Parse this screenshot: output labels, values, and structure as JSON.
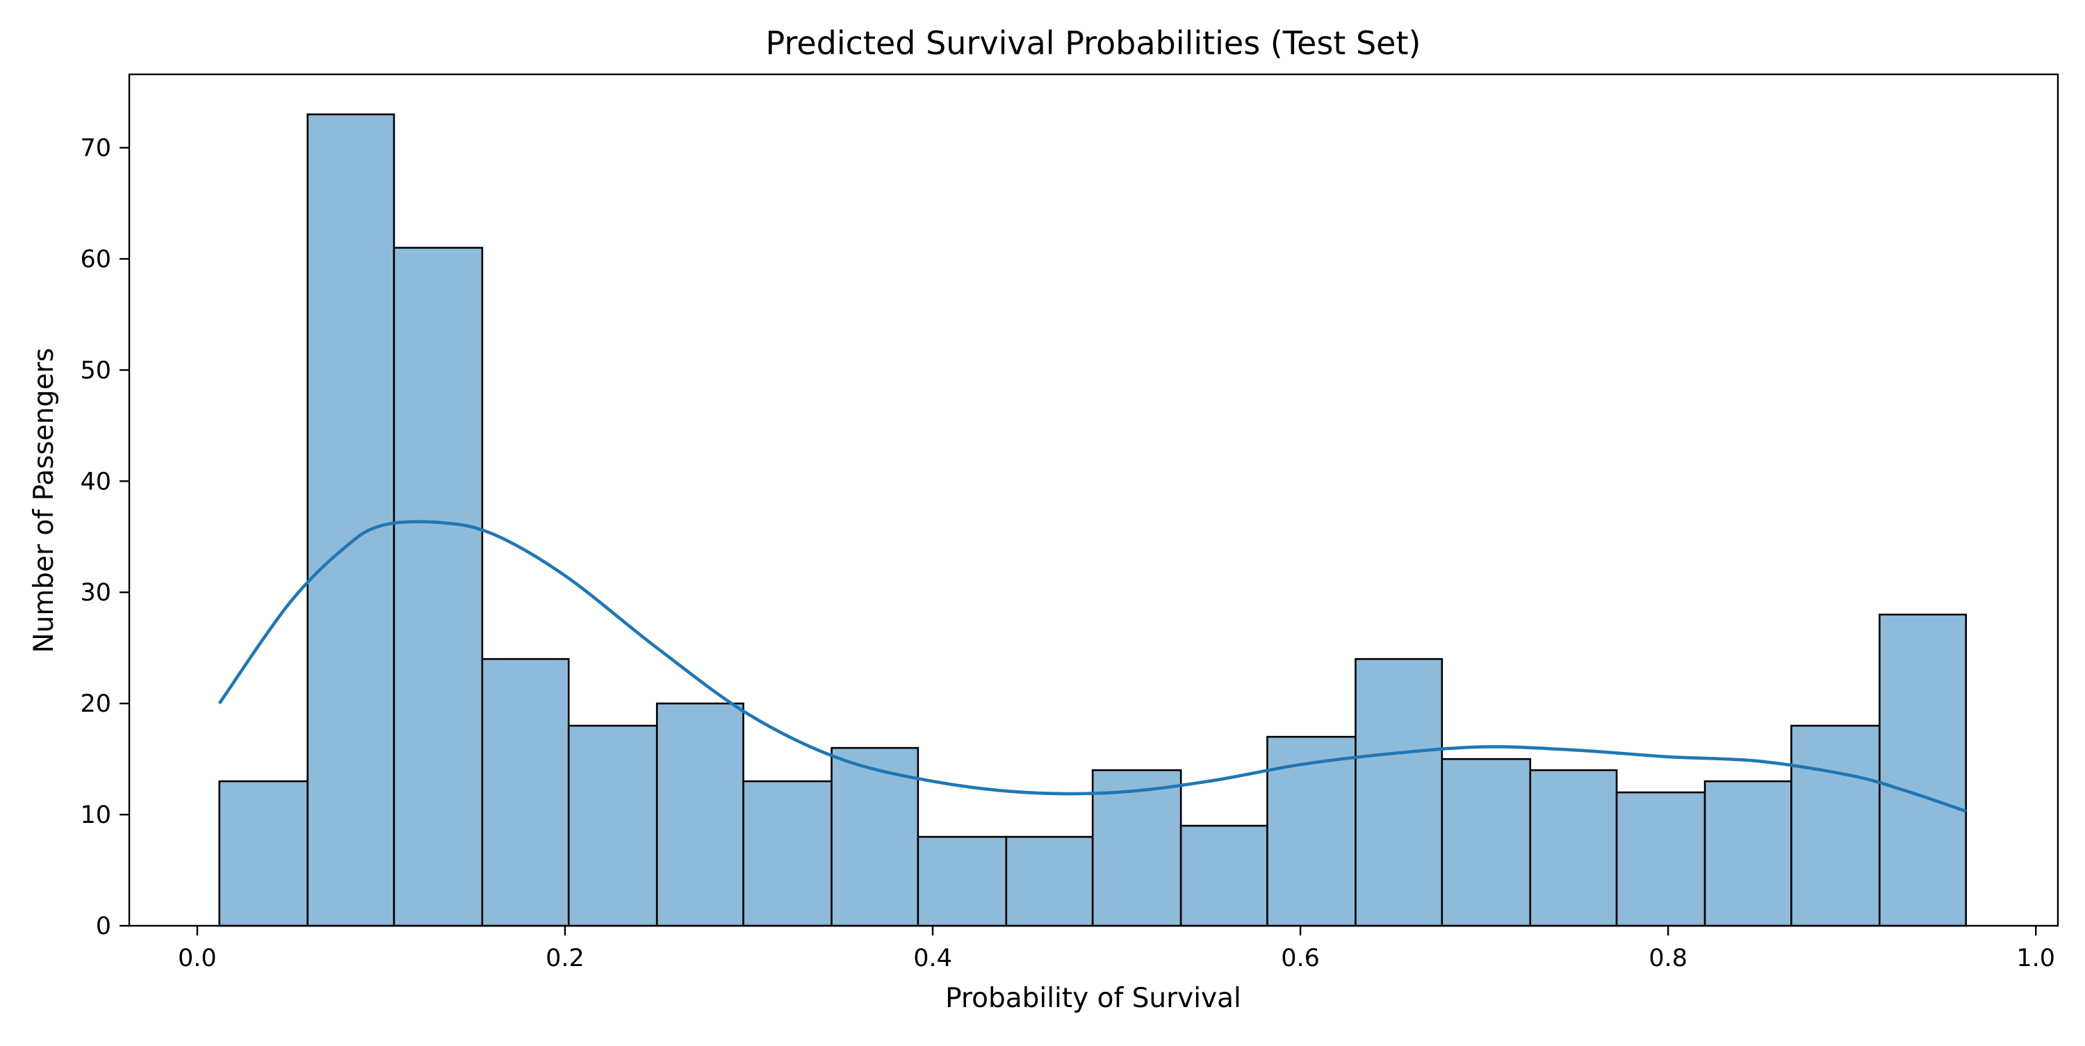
{
  "chart_data": {
    "type": "bar",
    "title": "Predicted Survival Probabilities (Test Set)",
    "xlabel": "Probability of Survival",
    "ylabel": "Number of Passengers",
    "xlim": [
      -0.037,
      1.012
    ],
    "ylim": [
      0,
      76.6
    ],
    "xticks": [
      0.0,
      0.2,
      0.4,
      0.6,
      0.8,
      1.0
    ],
    "xtick_labels": [
      "0.0",
      "0.2",
      "0.4",
      "0.6",
      "0.8",
      "1.0"
    ],
    "yticks": [
      0,
      10,
      20,
      30,
      40,
      50,
      60,
      70
    ],
    "ytick_labels": [
      "0",
      "10",
      "20",
      "30",
      "40",
      "50",
      "60",
      "70"
    ],
    "grid": false,
    "bins": [
      {
        "x0": 0.012,
        "x1": 0.06,
        "count": 13
      },
      {
        "x0": 0.06,
        "x1": 0.107,
        "count": 73
      },
      {
        "x0": 0.107,
        "x1": 0.155,
        "count": 61
      },
      {
        "x0": 0.155,
        "x1": 0.202,
        "count": 24
      },
      {
        "x0": 0.202,
        "x1": 0.25,
        "count": 18
      },
      {
        "x0": 0.25,
        "x1": 0.297,
        "count": 20
      },
      {
        "x0": 0.297,
        "x1": 0.345,
        "count": 13
      },
      {
        "x0": 0.345,
        "x1": 0.392,
        "count": 16
      },
      {
        "x0": 0.392,
        "x1": 0.44,
        "count": 8
      },
      {
        "x0": 0.44,
        "x1": 0.487,
        "count": 8
      },
      {
        "x0": 0.487,
        "x1": 0.535,
        "count": 14
      },
      {
        "x0": 0.535,
        "x1": 0.582,
        "count": 9
      },
      {
        "x0": 0.582,
        "x1": 0.63,
        "count": 17
      },
      {
        "x0": 0.63,
        "x1": 0.677,
        "count": 24
      },
      {
        "x0": 0.677,
        "x1": 0.725,
        "count": 15
      },
      {
        "x0": 0.725,
        "x1": 0.772,
        "count": 14
      },
      {
        "x0": 0.772,
        "x1": 0.82,
        "count": 12
      },
      {
        "x0": 0.82,
        "x1": 0.867,
        "count": 13
      },
      {
        "x0": 0.867,
        "x1": 0.915,
        "count": 18
      },
      {
        "x0": 0.915,
        "x1": 0.962,
        "count": 28
      }
    ],
    "kde": {
      "x": [
        0.012,
        0.05,
        0.08,
        0.1,
        0.13,
        0.16,
        0.2,
        0.25,
        0.3,
        0.35,
        0.4,
        0.45,
        0.5,
        0.55,
        0.6,
        0.65,
        0.7,
        0.75,
        0.8,
        0.85,
        0.9,
        0.93,
        0.962
      ],
      "y": [
        20,
        29,
        34,
        36,
        36.3,
        35.3,
        31.5,
        25,
        19,
        15,
        13,
        12,
        12,
        13,
        14.5,
        15.5,
        16.1,
        15.8,
        15.2,
        14.8,
        13.5,
        12.1,
        10.3
      ]
    },
    "colors": {
      "bar_fill": "#8fbbda",
      "bar_edge": "#000000",
      "kde_line": "#1f77b4"
    }
  }
}
